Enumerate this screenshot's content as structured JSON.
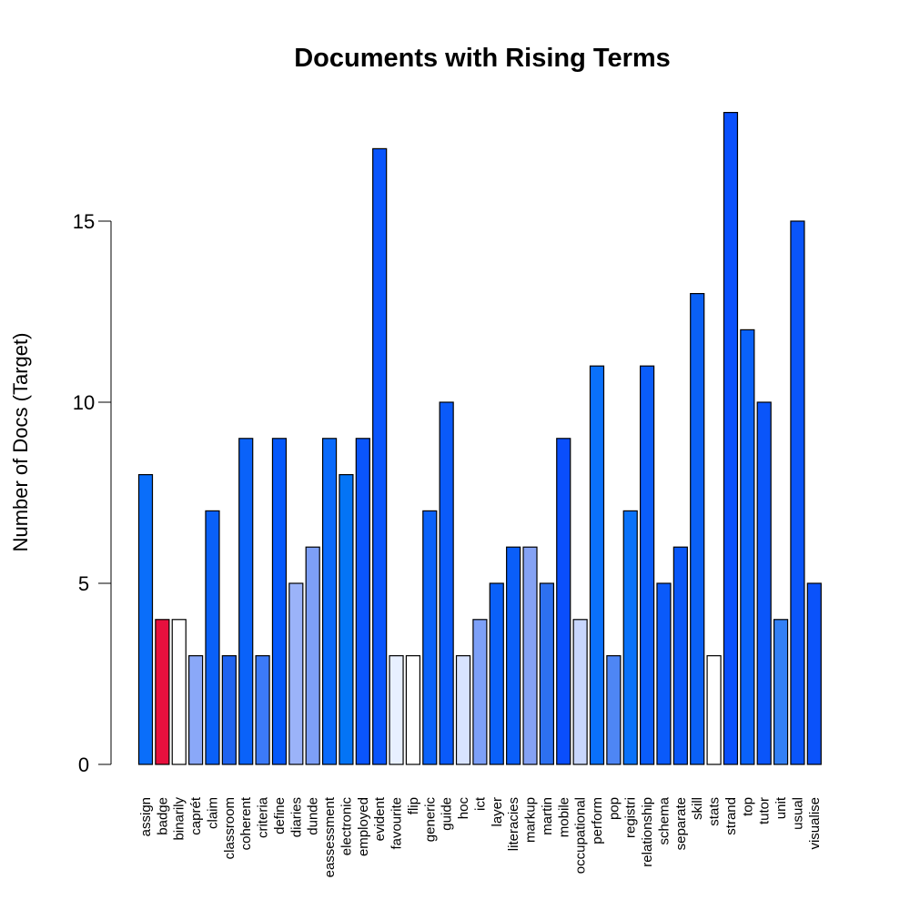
{
  "chart_data": {
    "type": "bar",
    "title": "Documents with Rising Terms",
    "xlabel": "",
    "ylabel": "Number of Docs (Target)",
    "ylim": [
      0,
      18
    ],
    "yticks": [
      0,
      5,
      10,
      15
    ],
    "grid": false,
    "categories": [
      "assign",
      "badge",
      "binarily",
      "caprét",
      "claim",
      "classroom",
      "coherent",
      "criteria",
      "define",
      "diaries",
      "dunde",
      "eassessment",
      "electronic",
      "employed",
      "evident",
      "favourite",
      "flip",
      "generic",
      "guide",
      "hoc",
      "ict",
      "layer",
      "literacies",
      "markup",
      "martin",
      "mobile",
      "occupational",
      "perform",
      "pop",
      "registri",
      "relationship",
      "schema",
      "separate",
      "skill",
      "stats",
      "strand",
      "top",
      "tutor",
      "unit",
      "usual",
      "visualise"
    ],
    "values": [
      8,
      4,
      4,
      3,
      7,
      3,
      9,
      3,
      9,
      5,
      6,
      9,
      8,
      9,
      17,
      3,
      3,
      7,
      10,
      3,
      4,
      5,
      6,
      6,
      5,
      9,
      4,
      11,
      3,
      7,
      11,
      5,
      6,
      13,
      3,
      18,
      12,
      10,
      4,
      15,
      5
    ],
    "colors": [
      "#0A6EFA",
      "#E8103E",
      "#FFFFFF",
      "#8AA8F8",
      "#0A60F8",
      "#1F63F0",
      "#0A62F9",
      "#3C7AF7",
      "#0558FA",
      "#9BB3F9",
      "#7D9FF6",
      "#0A6AFA",
      "#0474F5",
      "#0A55FC",
      "#0A55FC",
      "#E8F0FF",
      "#FFFFFF",
      "#0A62FA",
      "#0A5AFA",
      "#D8E3FF",
      "#7DA0F8",
      "#0A60F8",
      "#0A5EF9",
      "#85A2F4",
      "#2D70F0",
      "#0A4EFC",
      "#C8D6FC",
      "#0A70FA",
      "#4E86F5",
      "#0A72FA",
      "#0A5CFA",
      "#0A5AFA",
      "#0A58F8",
      "#0A60F5",
      "#FFFFFF",
      "#0A50FC",
      "#0A62FA",
      "#0A55FA",
      "#3380F5",
      "#0A55FA",
      "#0A52FA"
    ]
  }
}
